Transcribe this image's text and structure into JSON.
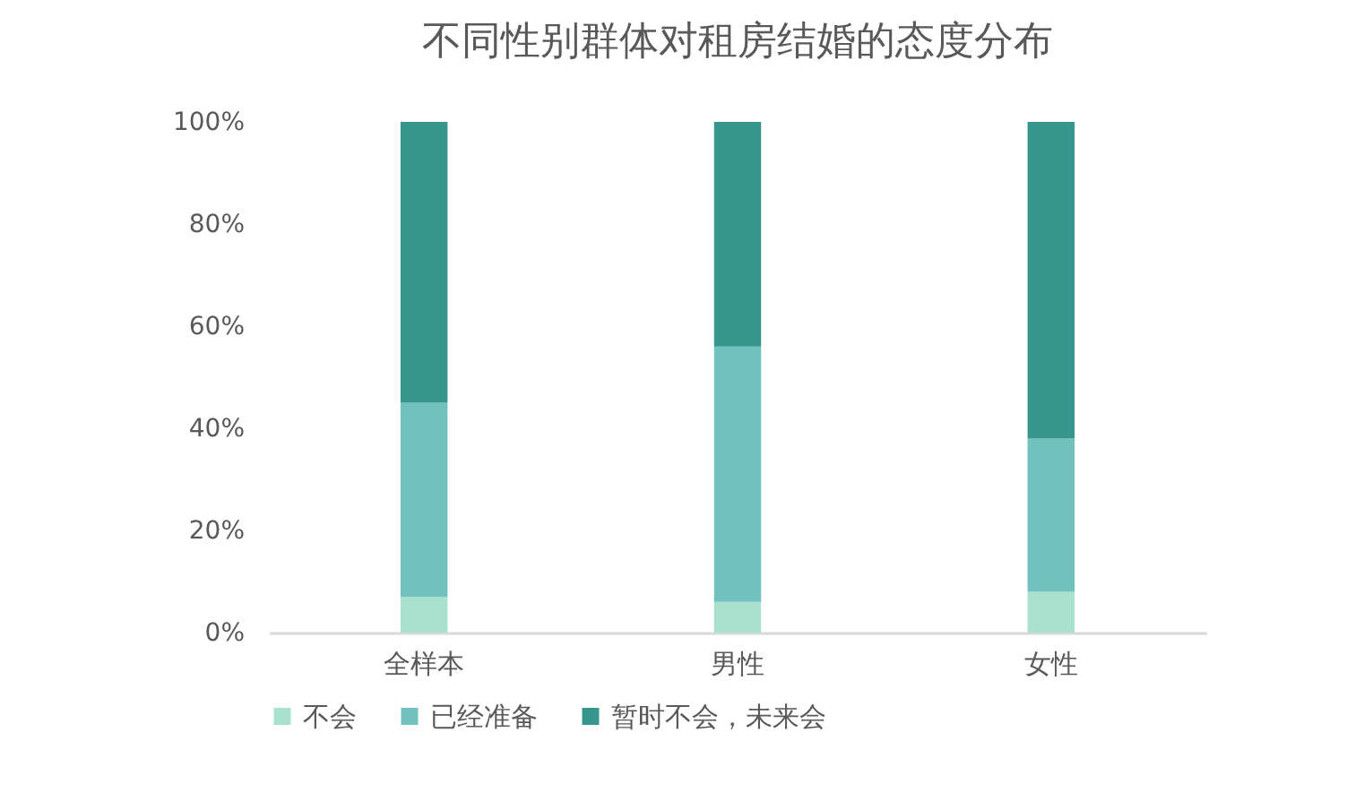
{
  "chart_data": {
    "type": "bar",
    "title": "不同性别群体对租房结婚的态度分布",
    "categories": [
      "全样本",
      "男性",
      "女性"
    ],
    "stacked": true,
    "series": [
      {
        "name": "不会",
        "color": "#a8e2cf",
        "values": [
          7,
          6,
          8
        ]
      },
      {
        "name": "已经准备",
        "color": "#71c1bf",
        "values": [
          38,
          50,
          30
        ]
      },
      {
        "name": "暂时不会，未来会",
        "color": "#36968b",
        "values": [
          55,
          44,
          62
        ]
      }
    ],
    "ylim": [
      0,
      100
    ],
    "yticks": [
      {
        "value": 0,
        "label": "0%"
      },
      {
        "value": 20,
        "label": "20%"
      },
      {
        "value": 40,
        "label": "40%"
      },
      {
        "value": 60,
        "label": "60%"
      },
      {
        "value": 80,
        "label": "80%"
      },
      {
        "value": 100,
        "label": "100%"
      }
    ],
    "grid": false,
    "legend": "bottom"
  }
}
